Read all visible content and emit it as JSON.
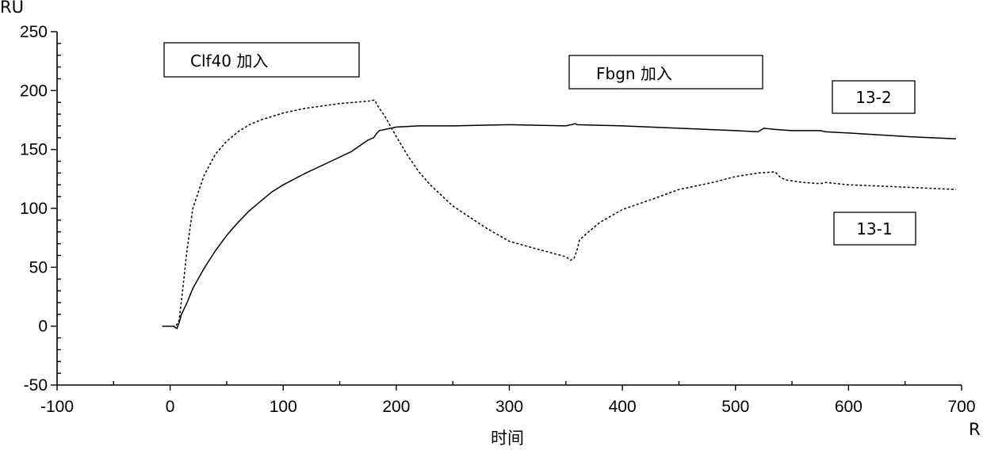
{
  "chart_data": {
    "type": "line",
    "ylabel": "RU",
    "xlabel": "时间",
    "xlabel_end": "R",
    "xlim": [
      -100,
      700
    ],
    "ylim": [
      -50,
      250
    ],
    "x_ticks": [
      -100,
      0,
      100,
      200,
      300,
      400,
      500,
      600,
      700
    ],
    "y_ticks": [
      -50,
      0,
      50,
      100,
      150,
      200,
      250
    ],
    "grid": false,
    "annotations": [
      {
        "text": "Clf40  加入",
        "x": 40,
        "y": 228
      },
      {
        "text": "Fbgn   加入",
        "x": 390,
        "y": 215
      }
    ],
    "series": [
      {
        "name": "13-2",
        "style": "solid",
        "x": [
          -7,
          3,
          6,
          8,
          10,
          15,
          20,
          30,
          40,
          50,
          60,
          70,
          80,
          90,
          100,
          120,
          140,
          160,
          175,
          180,
          183,
          185,
          190,
          200,
          220,
          250,
          300,
          350,
          355,
          358,
          360,
          400,
          450,
          500,
          520,
          525,
          535,
          550,
          575,
          580,
          600,
          650,
          695
        ],
        "y": [
          0,
          0,
          -2,
          3,
          10,
          20,
          32,
          49,
          64,
          77,
          88,
          98,
          106,
          114,
          120,
          130,
          139,
          148,
          158,
          160,
          164,
          166,
          167,
          169,
          170,
          170,
          171,
          170,
          171,
          172,
          171,
          170,
          168,
          166,
          165,
          168,
          167,
          166,
          166,
          165,
          164,
          161,
          159
        ]
      },
      {
        "name": "13-1",
        "style": "dashed",
        "x": [
          -2,
          5,
          8,
          11,
          15,
          20,
          30,
          40,
          50,
          60,
          70,
          80,
          100,
          120,
          150,
          175,
          181,
          183,
          190,
          200,
          210,
          220,
          230,
          250,
          280,
          300,
          330,
          350,
          354,
          357,
          360,
          362,
          370,
          380,
          400,
          430,
          450,
          480,
          500,
          520,
          535,
          540,
          545,
          560,
          575,
          580,
          600,
          650,
          695
        ],
        "y": [
          0,
          0,
          5,
          30,
          65,
          100,
          128,
          146,
          157,
          165,
          171,
          175,
          181,
          185,
          189,
          191,
          192,
          188,
          178,
          161,
          145,
          131,
          120,
          102,
          83,
          72,
          64,
          59,
          56,
          57,
          65,
          73,
          80,
          88,
          99,
          109,
          116,
          122,
          127,
          130,
          131,
          126,
          124,
          122,
          121,
          122,
          120,
          118,
          116
        ]
      }
    ],
    "labels": [
      {
        "text": "13-2",
        "series": 0
      },
      {
        "text": "13-1",
        "series": 1
      }
    ]
  }
}
